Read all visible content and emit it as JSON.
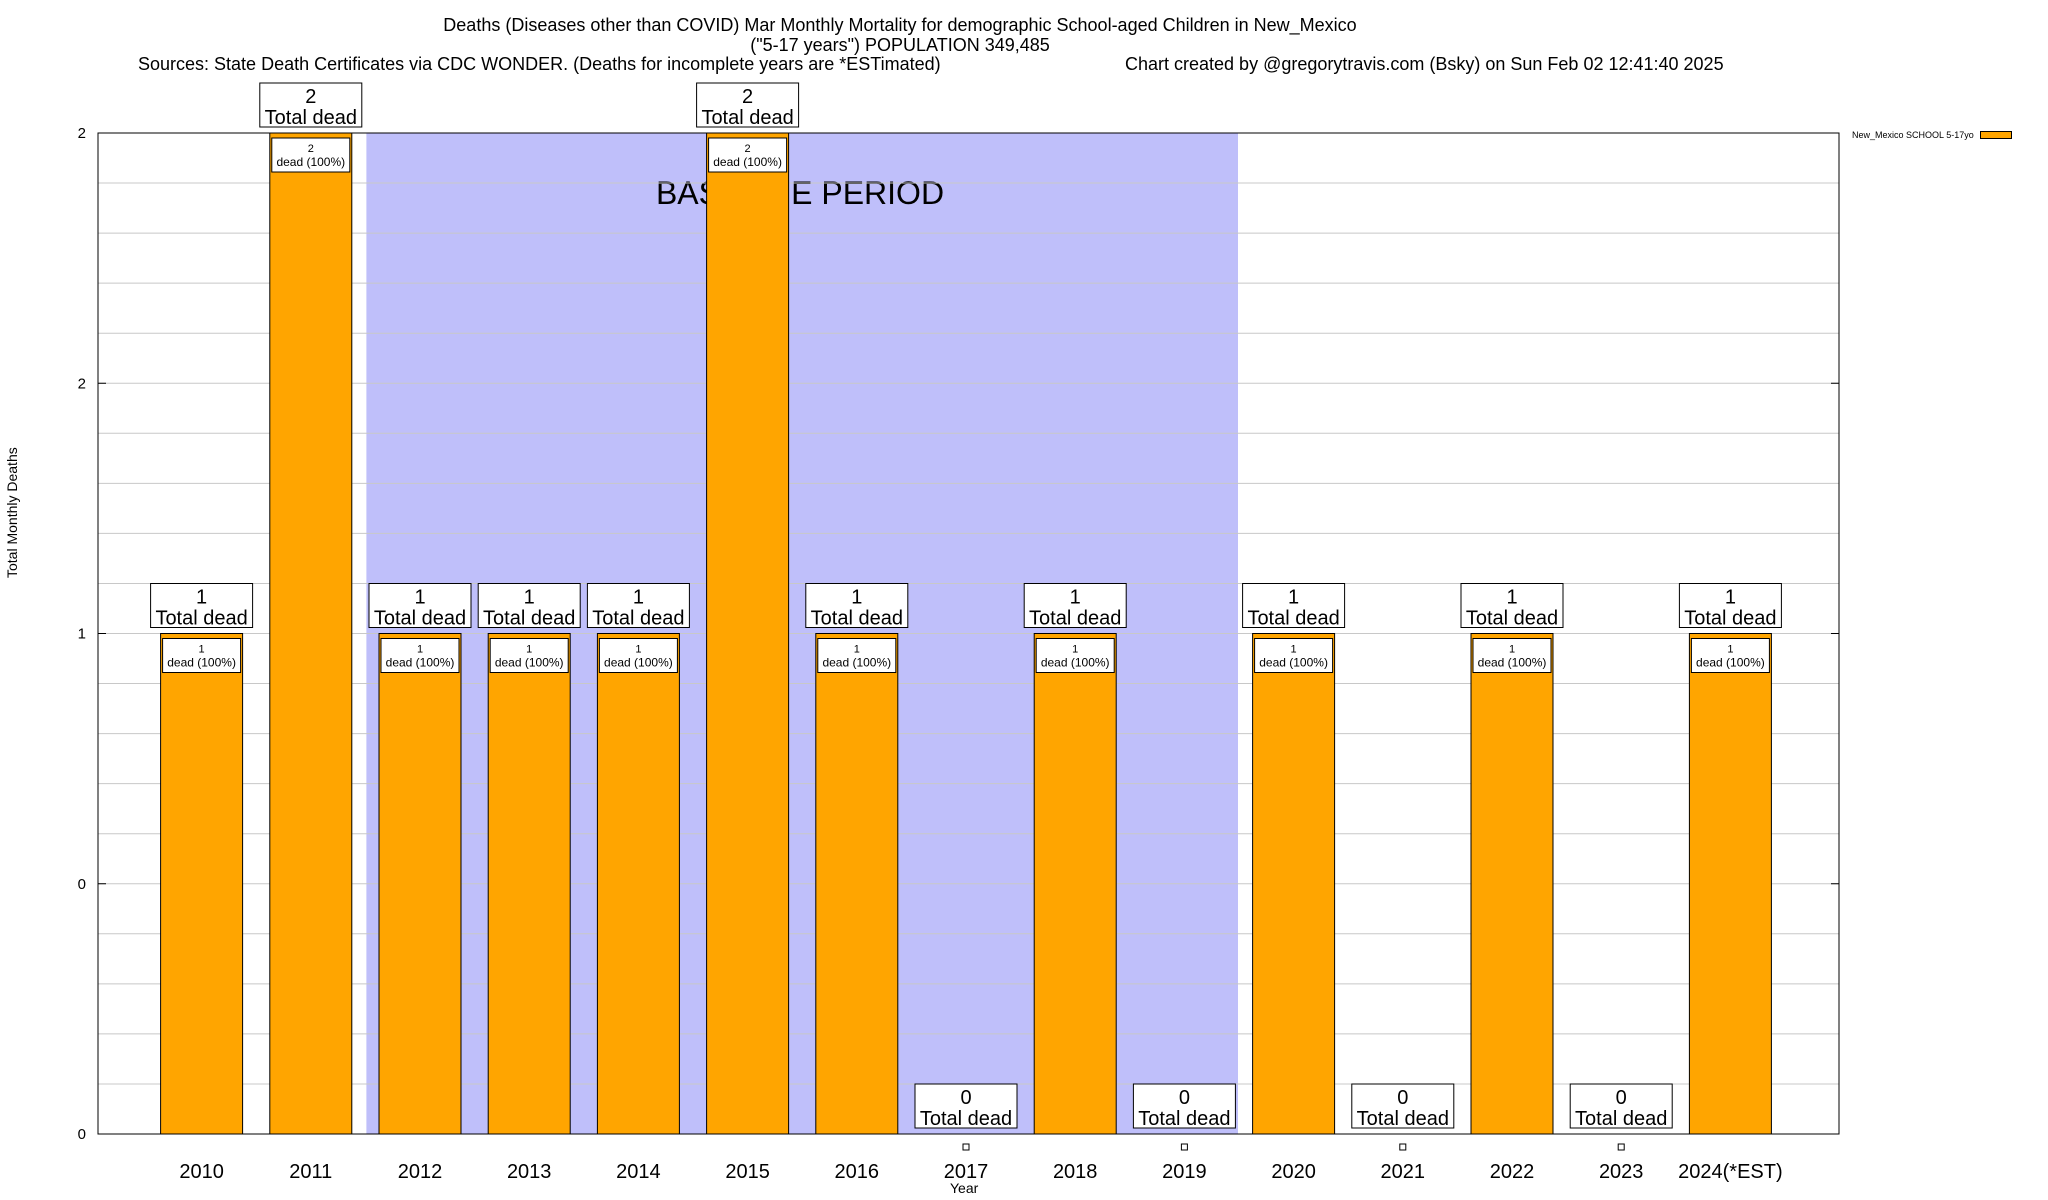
{
  "header": {
    "title": "Deaths (Diseases other than COVID) Mar Monthly Mortality for demographic School-aged Children in New_Mexico",
    "subtitle": "(\"5-17 years\") POPULATION 349,485",
    "sources": "Sources: State Death Certificates via CDC WONDER. (Deaths for incomplete years are *ESTimated)",
    "credit": "Chart created by @gregorytravis.com (Bsky) on Sun Feb 02 12:41:40 2025"
  },
  "chart_data": {
    "type": "bar",
    "title": "Deaths (Diseases other than COVID) Mar Monthly Mortality for demographic School-aged Children in New_Mexico",
    "xlabel": "Year",
    "ylabel": "Total Monthly Deaths",
    "ylim": [
      0,
      2
    ],
    "yticks": [
      "0",
      "0",
      "1",
      "2",
      "2"
    ],
    "grid": true,
    "legend_placement": "top-right",
    "baseline_label": "BASELINE PERIOD",
    "baseline_range": [
      "2012",
      "2019"
    ],
    "categories": [
      "2010",
      "2011",
      "2012",
      "2013",
      "2014",
      "2015",
      "2016",
      "2017",
      "2018",
      "2019",
      "2020",
      "2021",
      "2022",
      "2023",
      "2024(*EST)"
    ],
    "series": [
      {
        "name": "New_Mexico SCHOOL 5-17yo",
        "values": [
          1,
          2,
          1,
          1,
          1,
          2,
          1,
          0,
          1,
          0,
          1,
          0,
          1,
          0,
          1
        ]
      }
    ],
    "total_label": "Total dead",
    "inner_label_suffix": "dead (100%)"
  },
  "colors": {
    "bar": "#ffa500",
    "baseline_band": "#bfbffa",
    "grid": "#c8c8c8",
    "axis": "#000000"
  }
}
